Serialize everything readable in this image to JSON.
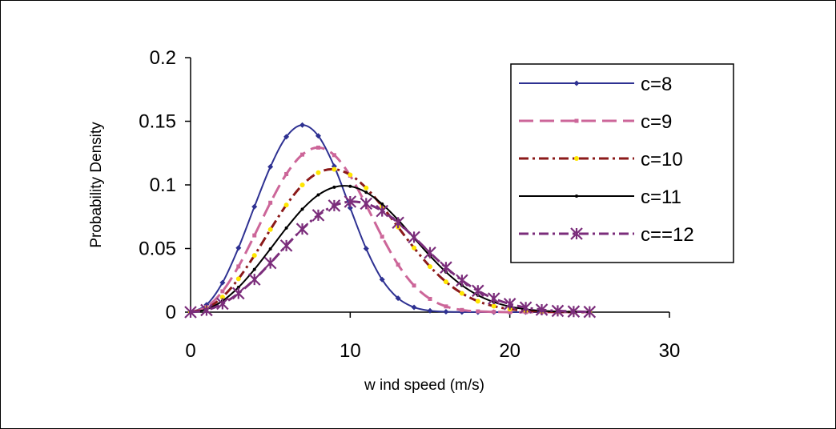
{
  "chart_data": {
    "type": "line",
    "title": "",
    "xlabel": "w ind speed (m/s)",
    "ylabel": "Probability Density",
    "xlim": [
      0,
      30
    ],
    "ylim": [
      0,
      0.2
    ],
    "xticks": [
      "0",
      "10",
      "20",
      "30"
    ],
    "yticks": [
      "0",
      "0.05",
      "0.1",
      "0.15",
      "0.2"
    ],
    "grid": false,
    "legend_position": "right",
    "x": [
      0,
      1,
      2,
      3,
      4,
      5,
      6,
      7,
      8,
      9,
      10,
      11,
      12,
      13,
      14,
      15,
      16,
      17,
      18,
      19,
      20,
      21,
      22,
      23,
      24,
      25
    ],
    "series": [
      {
        "name": "c=8",
        "color": "#2E3192",
        "dash": "solid",
        "marker": "diamond",
        "values": [
          0,
          0.0058,
          0.0232,
          0.0505,
          0.0829,
          0.1142,
          0.1378,
          0.147,
          0.1385,
          0.1146,
          0.0819,
          0.0499,
          0.0256,
          0.0109,
          0.0038,
          0.0011,
          0.0003,
          0.0001,
          0,
          0,
          0,
          0,
          0,
          0,
          0,
          0
        ]
      },
      {
        "name": "c=9",
        "color": "#CC6699",
        "dash": "long",
        "marker": "square",
        "values": [
          0,
          0.0041,
          0.0164,
          0.0359,
          0.0603,
          0.086,
          0.1085,
          0.1238,
          0.1293,
          0.1234,
          0.1072,
          0.0841,
          0.0593,
          0.0373,
          0.0209,
          0.0104,
          0.0045,
          0.0017,
          0.0006,
          0.0002,
          0,
          0,
          0,
          0,
          0,
          0
        ]
      },
      {
        "name": "c=10",
        "color": "#8B1A1A",
        "dash": "dashdot",
        "marker": "circle",
        "marker_color": "#FFE600",
        "values": [
          0,
          0.003,
          0.0119,
          0.0262,
          0.0446,
          0.0649,
          0.0842,
          0.0999,
          0.1096,
          0.1123,
          0.1079,
          0.0976,
          0.0832,
          0.0668,
          0.0505,
          0.0358,
          0.0238,
          0.0148,
          0.0086,
          0.0047,
          0.0024,
          0.0011,
          0.0005,
          0.0002,
          0.0001,
          0
        ]
      },
      {
        "name": "c=11",
        "color": "#000000",
        "dash": "solid",
        "marker": "dot",
        "values": [
          0,
          0.0022,
          0.0088,
          0.0195,
          0.0336,
          0.0497,
          0.0661,
          0.0809,
          0.0921,
          0.0982,
          0.0989,
          0.0942,
          0.085,
          0.0725,
          0.0583,
          0.0442,
          0.0315,
          0.0211,
          0.0133,
          0.0079,
          0.0044,
          0.0023,
          0.0011,
          0.0005,
          0.0002,
          0.0001
        ]
      },
      {
        "name": "c==12",
        "color": "#7B2D7B",
        "dash": "dashdot",
        "marker": "asterisk",
        "values": [
          0,
          0.0016,
          0.0066,
          0.0148,
          0.0257,
          0.0386,
          0.0523,
          0.0653,
          0.0762,
          0.0837,
          0.0868,
          0.0853,
          0.0795,
          0.0703,
          0.0589,
          0.0467,
          0.0351,
          0.025,
          0.0168,
          0.0107,
          0.0064,
          0.0036,
          0.0019,
          0.001,
          0.0005,
          0.0002
        ]
      }
    ]
  }
}
